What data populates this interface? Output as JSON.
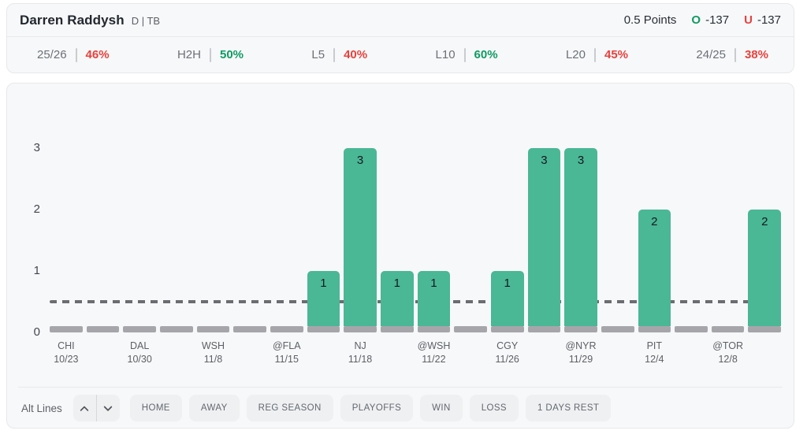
{
  "header": {
    "player_name": "Darren Raddysh",
    "position_team": "D | TB",
    "line_label": "0.5 Points",
    "over_label": "O",
    "over_odds": "-137",
    "under_label": "U",
    "under_odds": "-137"
  },
  "stats": [
    {
      "label": "25/26",
      "value": "46%",
      "trend": "negative"
    },
    {
      "label": "H2H",
      "value": "50%",
      "trend": "positive"
    },
    {
      "label": "L5",
      "value": "40%",
      "trend": "negative"
    },
    {
      "label": "L10",
      "value": "60%",
      "trend": "positive"
    },
    {
      "label": "L20",
      "value": "45%",
      "trend": "negative"
    },
    {
      "label": "24/25",
      "value": "38%",
      "trend": "negative"
    }
  ],
  "chart_data": {
    "type": "bar",
    "title": "",
    "xlabel": "",
    "ylabel": "",
    "ylim": [
      0,
      3.5
    ],
    "yticks": [
      0,
      1,
      2,
      3
    ],
    "reference_line": 0.5,
    "grid": false,
    "values": [
      0,
      0,
      0,
      0,
      0,
      0,
      0,
      1,
      3,
      1,
      1,
      0,
      1,
      3,
      3,
      0,
      2,
      0,
      0,
      2
    ],
    "value_labels_shown_for_nonzero": true,
    "x_tick_labels": [
      {
        "bar_index": 0,
        "team": "CHI",
        "date": "10/23"
      },
      {
        "bar_index": 2,
        "team": "DAL",
        "date": "10/30"
      },
      {
        "bar_index": 4,
        "team": "WSH",
        "date": "11/8"
      },
      {
        "bar_index": 6,
        "team": "@FLA",
        "date": "11/15"
      },
      {
        "bar_index": 8,
        "team": "NJ",
        "date": "11/18"
      },
      {
        "bar_index": 10,
        "team": "@WSH",
        "date": "11/22"
      },
      {
        "bar_index": 12,
        "team": "CGY",
        "date": "11/26"
      },
      {
        "bar_index": 14,
        "team": "@NYR",
        "date": "11/29"
      },
      {
        "bar_index": 16,
        "team": "PIT",
        "date": "12/4"
      },
      {
        "bar_index": 18,
        "team": "@TOR",
        "date": "12/8"
      }
    ]
  },
  "controls": {
    "alt_lines_label": "Alt Lines",
    "filters": [
      "HOME",
      "AWAY",
      "REG SEASON",
      "PLAYOFFS",
      "WIN",
      "LOSS",
      "1 DAYS REST"
    ]
  },
  "colors": {
    "bar_green": "#4AB795",
    "zero_stub_gray": "#A6A6AA",
    "reference_line_gray": "#6B6D70",
    "positive_green": "#0E9B63",
    "negative_red": "#E8413D"
  }
}
